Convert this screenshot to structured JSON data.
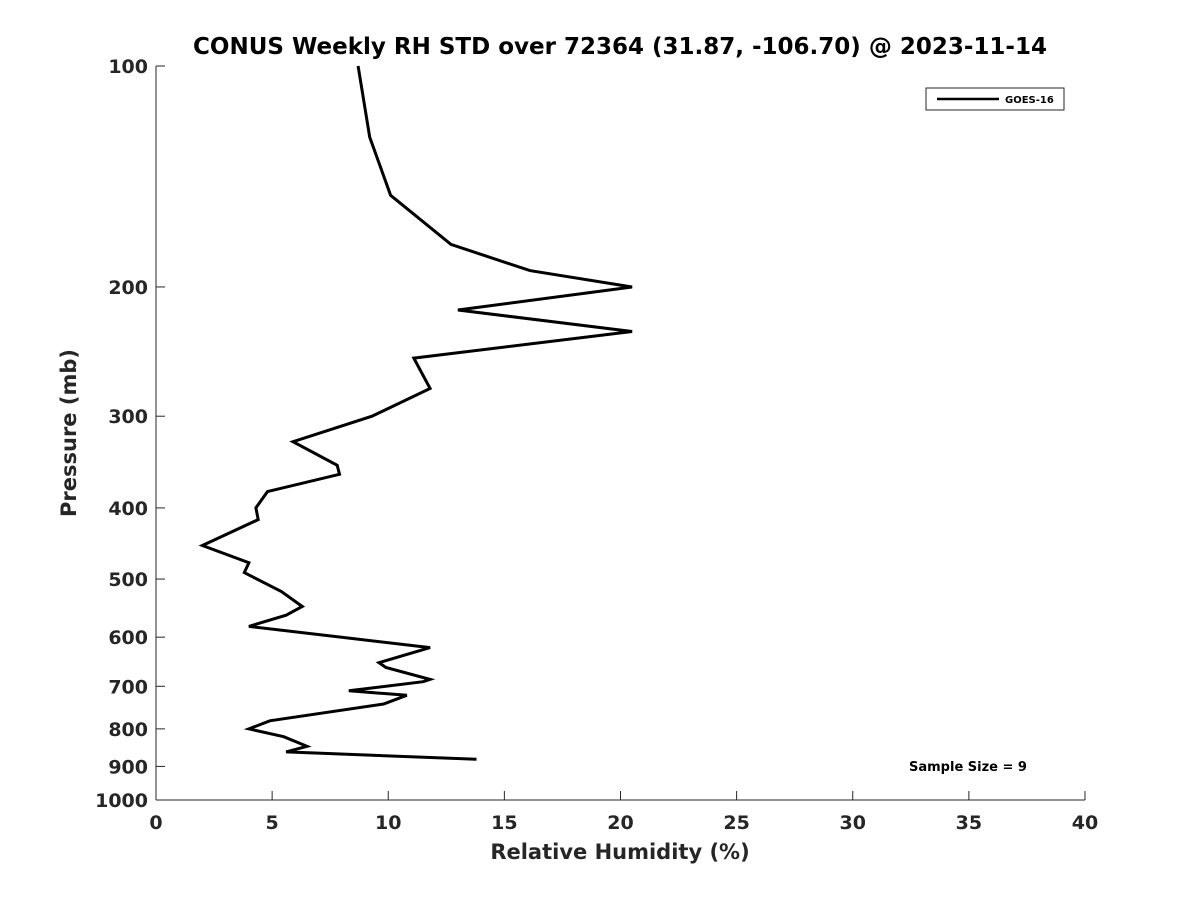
{
  "chart_data": {
    "type": "line",
    "title": "CONUS Weekly RH STD over 72364 (31.87, -106.70) @ 2023-11-14",
    "xlabel": "Relative Humidity (%)",
    "ylabel": "Pressure (mb)",
    "xlim": [
      0,
      40
    ],
    "ylim": [
      100,
      1000
    ],
    "yscale": "log",
    "yreversed": true,
    "xticks": [
      0,
      5,
      10,
      15,
      20,
      25,
      30,
      35,
      40
    ],
    "yticks": [
      100,
      200,
      300,
      400,
      500,
      600,
      700,
      800,
      900,
      1000
    ],
    "legend_position": "top-right",
    "grid": false,
    "series": [
      {
        "name": "GOES-16",
        "color": "#000000",
        "points": [
          [
            8.7,
            100
          ],
          [
            9.2,
            125
          ],
          [
            10.1,
            150
          ],
          [
            12.7,
            175
          ],
          [
            16.1,
            190
          ],
          [
            20.5,
            200
          ],
          [
            13.0,
            215
          ],
          [
            20.5,
            230
          ],
          [
            11.1,
            250
          ],
          [
            11.8,
            275
          ],
          [
            9.3,
            300
          ],
          [
            5.9,
            325
          ],
          [
            7.8,
            350
          ],
          [
            7.9,
            360
          ],
          [
            4.8,
            380
          ],
          [
            4.3,
            400
          ],
          [
            4.4,
            415
          ],
          [
            2.0,
            450
          ],
          [
            4.0,
            475
          ],
          [
            3.8,
            490
          ],
          [
            5.4,
            520
          ],
          [
            6.3,
            545
          ],
          [
            5.6,
            560
          ],
          [
            4.0,
            580
          ],
          [
            11.8,
            620
          ],
          [
            9.6,
            650
          ],
          [
            9.9,
            660
          ],
          [
            11.8,
            685
          ],
          [
            11.5,
            690
          ],
          [
            8.3,
            710
          ],
          [
            10.8,
            720
          ],
          [
            9.8,
            740
          ],
          [
            4.9,
            780
          ],
          [
            4.0,
            800
          ],
          [
            5.5,
            820
          ],
          [
            6.5,
            845
          ],
          [
            5.6,
            860
          ],
          [
            13.8,
            880
          ]
        ]
      }
    ],
    "annotations": [
      "Sample Size = 9"
    ]
  }
}
